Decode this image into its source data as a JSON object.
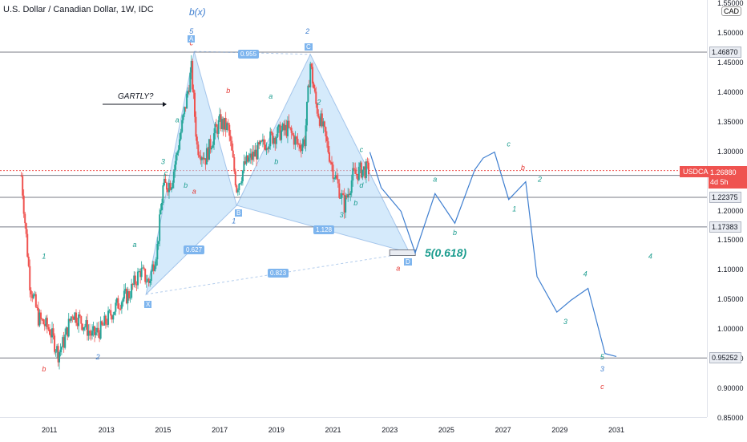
{
  "title": "U.S. Dollar / Canadian Dollar, 1W, IDC",
  "currency_badge": "CAD",
  "symbol_tag": "USDCAD",
  "current_price": "1.26880",
  "countdown": "4d 5h",
  "annotations": {
    "gartly": "GARTLY?",
    "wave_target": "5(0.618)",
    "b_x": "b(x)"
  },
  "ratios": [
    "0.955",
    "0.627",
    "1.128",
    "0.823"
  ],
  "pattern_points": [
    "A",
    "C",
    "X",
    "B",
    "D"
  ],
  "colors": {
    "up_candle": "#26a69a",
    "down_candle": "#ef5350",
    "pattern_fill": "#b3d9f7",
    "projection_line": "#3f7fd0",
    "hline": "#787b86",
    "teal_label": "#1a9c8e",
    "red_label": "#e53935"
  },
  "chart_data": {
    "type": "line",
    "title": "U.S. Dollar / Canadian Dollar, 1W, IDC",
    "xlabel": "",
    "ylabel": "",
    "x_ticks": [
      "2011",
      "2013",
      "2015",
      "2017",
      "2019",
      "2021",
      "2023",
      "2025",
      "2027",
      "2029",
      "2031"
    ],
    "y_ticks": [
      "1.55000",
      "1.50000",
      "1.45000",
      "1.40000",
      "1.35000",
      "1.30000",
      "1.25000",
      "1.20000",
      "1.15000",
      "1.10000",
      "1.05000",
      "1.00000",
      "0.95000",
      "0.90000",
      "0.85000"
    ],
    "ylim": [
      0.85,
      1.555
    ],
    "price_levels": [
      "1.46870",
      "1.26082",
      "1.22375",
      "1.17383",
      "0.95252"
    ],
    "series": [
      {
        "type": "candlestick",
        "x": [
          2010.0,
          2010.3,
          2010.6,
          2011.0,
          2011.3,
          2011.5,
          2011.8,
          2012.2,
          2012.5,
          2012.8,
          2013.2,
          2013.5,
          2013.8,
          2014.2,
          2014.5,
          2014.8,
          2015.0,
          2015.3,
          2015.5,
          2015.8,
          2016.0,
          2016.2,
          2016.5,
          2016.8,
          2017.0,
          2017.3,
          2017.6,
          2017.9,
          2018.3,
          2018.7,
          2019.0,
          2019.4,
          2019.8,
          2020.0,
          2020.2,
          2020.4,
          2020.7,
          2021.0,
          2021.4,
          2021.7,
          2022.0,
          2022.3
        ],
        "values": [
          1.26,
          1.08,
          1.02,
          1.0,
          0.96,
          0.98,
          1.03,
          1.01,
          0.99,
          1.0,
          1.03,
          1.05,
          1.06,
          1.1,
          1.08,
          1.14,
          1.24,
          1.25,
          1.3,
          1.38,
          1.44,
          1.31,
          1.29,
          1.33,
          1.35,
          1.34,
          1.24,
          1.28,
          1.3,
          1.32,
          1.33,
          1.34,
          1.31,
          1.32,
          1.45,
          1.38,
          1.33,
          1.27,
          1.21,
          1.26,
          1.27,
          1.27
        ]
      },
      {
        "type": "projection",
        "x": [
          2022.3,
          2022.7,
          2023.4,
          2023.9,
          2024.6,
          2025.3,
          2026.0,
          2026.3,
          2026.7,
          2027.2,
          2027.8,
          2028.2,
          2028.9,
          2029.4,
          2030.0,
          2030.6,
          2031.0
        ],
        "values": [
          1.3,
          1.24,
          1.2,
          1.13,
          1.23,
          1.18,
          1.27,
          1.29,
          1.3,
          1.22,
          1.25,
          1.09,
          1.03,
          1.05,
          1.07,
          0.96,
          0.955
        ]
      }
    ],
    "wave_labels": [
      {
        "text": "b",
        "x": 2010.8,
        "y": 0.93,
        "color": "red"
      },
      {
        "text": "2",
        "x": 2012.7,
        "y": 0.95,
        "color": "blue"
      },
      {
        "text": "a",
        "x": 2014.0,
        "y": 1.14,
        "color": "teal"
      },
      {
        "text": "b",
        "x": 2014.4,
        "y": 1.04,
        "color": "teal"
      },
      {
        "text": "3",
        "x": 2015.0,
        "y": 1.28,
        "color": "teal"
      },
      {
        "text": "c",
        "x": 2015.1,
        "y": 1.26,
        "color": "teal"
      },
      {
        "text": "a",
        "x": 2015.5,
        "y": 1.35,
        "color": "teal"
      },
      {
        "text": "b",
        "x": 2015.8,
        "y": 1.24,
        "color": "teal"
      },
      {
        "text": "c",
        "x": 2016.0,
        "y": 1.48,
        "color": "red"
      },
      {
        "text": "a",
        "x": 2016.1,
        "y": 1.23,
        "color": "red"
      },
      {
        "text": "b",
        "x": 2017.3,
        "y": 1.4,
        "color": "red"
      },
      {
        "text": "1",
        "x": 2017.5,
        "y": 1.18,
        "color": "blue"
      },
      {
        "text": "a",
        "x": 2018.8,
        "y": 1.39,
        "color": "teal"
      },
      {
        "text": "b",
        "x": 2019.0,
        "y": 1.28,
        "color": "teal"
      },
      {
        "text": "2",
        "x": 2020.1,
        "y": 1.5,
        "color": "blue"
      },
      {
        "text": "2",
        "x": 2020.5,
        "y": 1.38,
        "color": "teal"
      },
      {
        "text": "3",
        "x": 2021.3,
        "y": 1.19,
        "color": "teal"
      },
      {
        "text": "b",
        "x": 2021.8,
        "y": 1.21,
        "color": "teal"
      },
      {
        "text": "d",
        "x": 2022.0,
        "y": 1.24,
        "color": "teal"
      },
      {
        "text": "c",
        "x": 2022.0,
        "y": 1.3,
        "color": "teal"
      },
      {
        "text": "a",
        "x": 2024.6,
        "y": 1.25,
        "color": "teal"
      },
      {
        "text": "b",
        "x": 2025.3,
        "y": 1.16,
        "color": "teal"
      },
      {
        "text": "c",
        "x": 2027.2,
        "y": 1.31,
        "color": "teal"
      },
      {
        "text": "b",
        "x": 2027.7,
        "y": 1.27,
        "color": "red"
      },
      {
        "text": "1",
        "x": 2027.4,
        "y": 1.2,
        "color": "teal"
      },
      {
        "text": "2",
        "x": 2028.3,
        "y": 1.25,
        "color": "teal"
      },
      {
        "text": "3",
        "x": 2029.2,
        "y": 1.01,
        "color": "teal"
      },
      {
        "text": "4",
        "x": 2029.9,
        "y": 1.09,
        "color": "teal"
      },
      {
        "text": "5",
        "x": 2030.5,
        "y": 0.95,
        "color": "teal"
      },
      {
        "text": "3",
        "x": 2030.5,
        "y": 0.93,
        "color": "blue"
      },
      {
        "text": "c",
        "x": 2030.5,
        "y": 0.9,
        "color": "red"
      },
      {
        "text": "4",
        "x": 2032.2,
        "y": 1.12,
        "color": "teal"
      },
      {
        "text": "a",
        "x": 2023.3,
        "y": 1.1,
        "color": "red"
      },
      {
        "text": "1",
        "x": 2010.8,
        "y": 1.12,
        "color": "teal"
      },
      {
        "text": "5",
        "x": 2016.0,
        "y": 1.5,
        "color": "blue"
      }
    ]
  }
}
